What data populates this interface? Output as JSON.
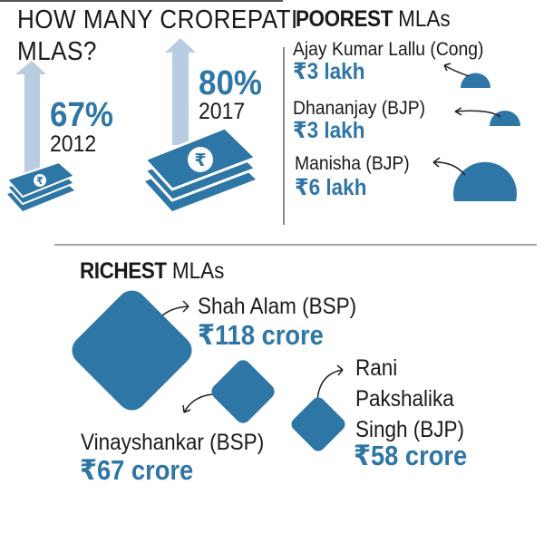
{
  "crorepati": {
    "title_line1": "HOW MANY CROREPATI",
    "title_line2": "MLAS?",
    "items": [
      {
        "percent": "67%",
        "year": "2012"
      },
      {
        "percent": "80%",
        "year": "2017"
      }
    ],
    "currency_symbol": "₹"
  },
  "poorest": {
    "title_bold": "POOREST",
    "title_rest": " MLAs",
    "items": [
      {
        "name": "Ajay Kumar Lallu (Cong)",
        "amount": "₹3 lakh"
      },
      {
        "name": "Dhananjay (BJP)",
        "amount": "₹3 lakh"
      },
      {
        "name": "Manisha (BJP)",
        "amount": "₹6 lakh"
      }
    ]
  },
  "richest": {
    "title_bold": "RICHEST",
    "title_rest": " MLAs",
    "items": [
      {
        "name": "Shah Alam (BSP)",
        "amount": "₹118 crore"
      },
      {
        "name": "Vinayshankar (BSP)",
        "amount": "₹67 crore"
      },
      {
        "name_lines": [
          "Rani",
          "Pakshalika",
          "Singh (BJP)"
        ],
        "amount": "₹58 crore"
      }
    ]
  },
  "colors": {
    "accent": "#2e76a6",
    "arrow": "#b8cce2",
    "text": "#1a1a1a"
  }
}
